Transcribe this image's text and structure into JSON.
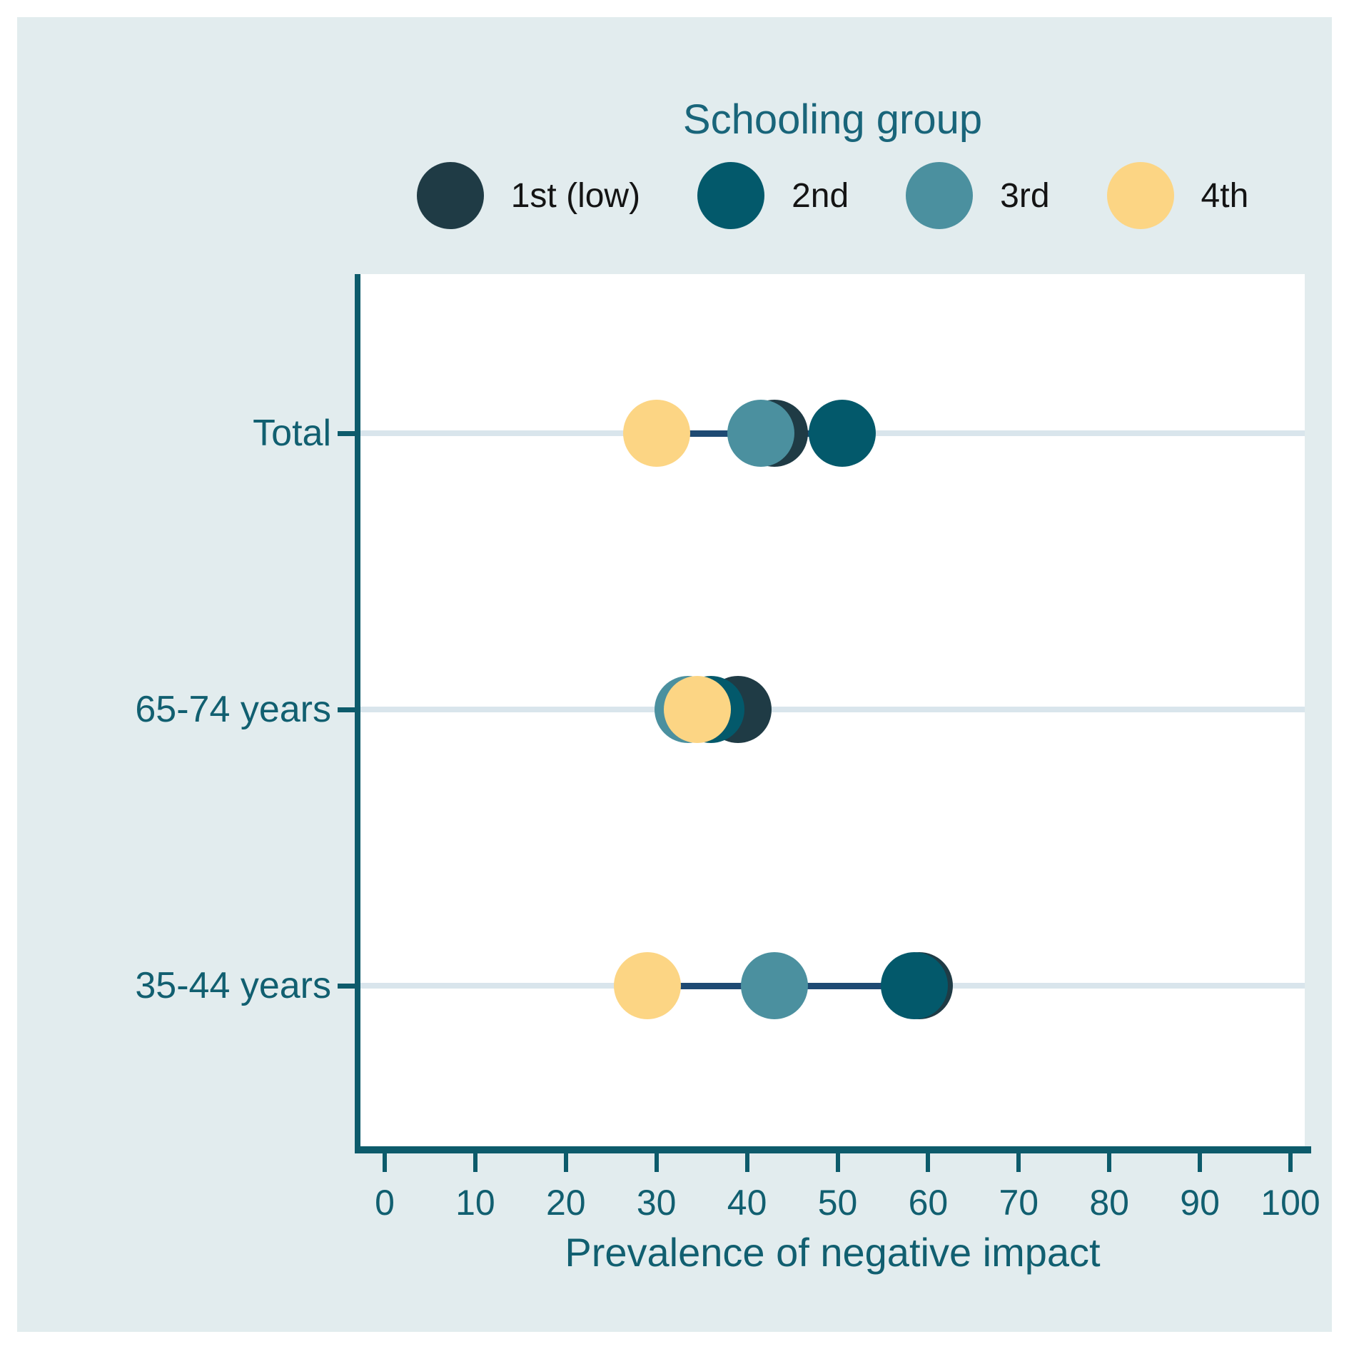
{
  "legend": {
    "title": "Schooling group",
    "items": [
      {
        "label": "1st (low)",
        "color": "#1f3b45"
      },
      {
        "label": "2nd",
        "color": "#03596b"
      },
      {
        "label": "3rd",
        "color": "#4b909f"
      },
      {
        "label": "4th",
        "color": "#fcd584"
      }
    ]
  },
  "chart_data": {
    "type": "scatter",
    "variant": "dumbbell-dot-plot",
    "title": "",
    "categories": [
      "Total",
      "65-74 years",
      "35-44 years"
    ],
    "series": [
      {
        "name": "1st (low)",
        "color": "#1f3b45",
        "values": [
          43,
          39,
          59
        ]
      },
      {
        "name": "2nd",
        "color": "#03596b",
        "values": [
          50.5,
          36,
          58.5
        ]
      },
      {
        "name": "3rd",
        "color": "#4b909f",
        "values": [
          41.5,
          33.5,
          43
        ]
      },
      {
        "name": "4th",
        "color": "#fcd584",
        "values": [
          30,
          34.5,
          29
        ]
      }
    ],
    "xlabel": "Prevalence of negative impact",
    "ylabel": "",
    "x_ticks": [
      0,
      10,
      20,
      30,
      40,
      50,
      60,
      70,
      80,
      90,
      100
    ],
    "xlim": [
      -3,
      102
    ],
    "grid": true,
    "legend_position": "top",
    "marker_draw_order": [
      "1st (low)",
      "2nd",
      "3rd",
      "4th"
    ],
    "connector_color": "#1e4a73",
    "gridline_color": "#d9e5ec",
    "axis_color": "#0d5b6b",
    "text_color": "#115f70",
    "plot_bg": "#ffffff",
    "page_bg": "#e2ecee"
  }
}
